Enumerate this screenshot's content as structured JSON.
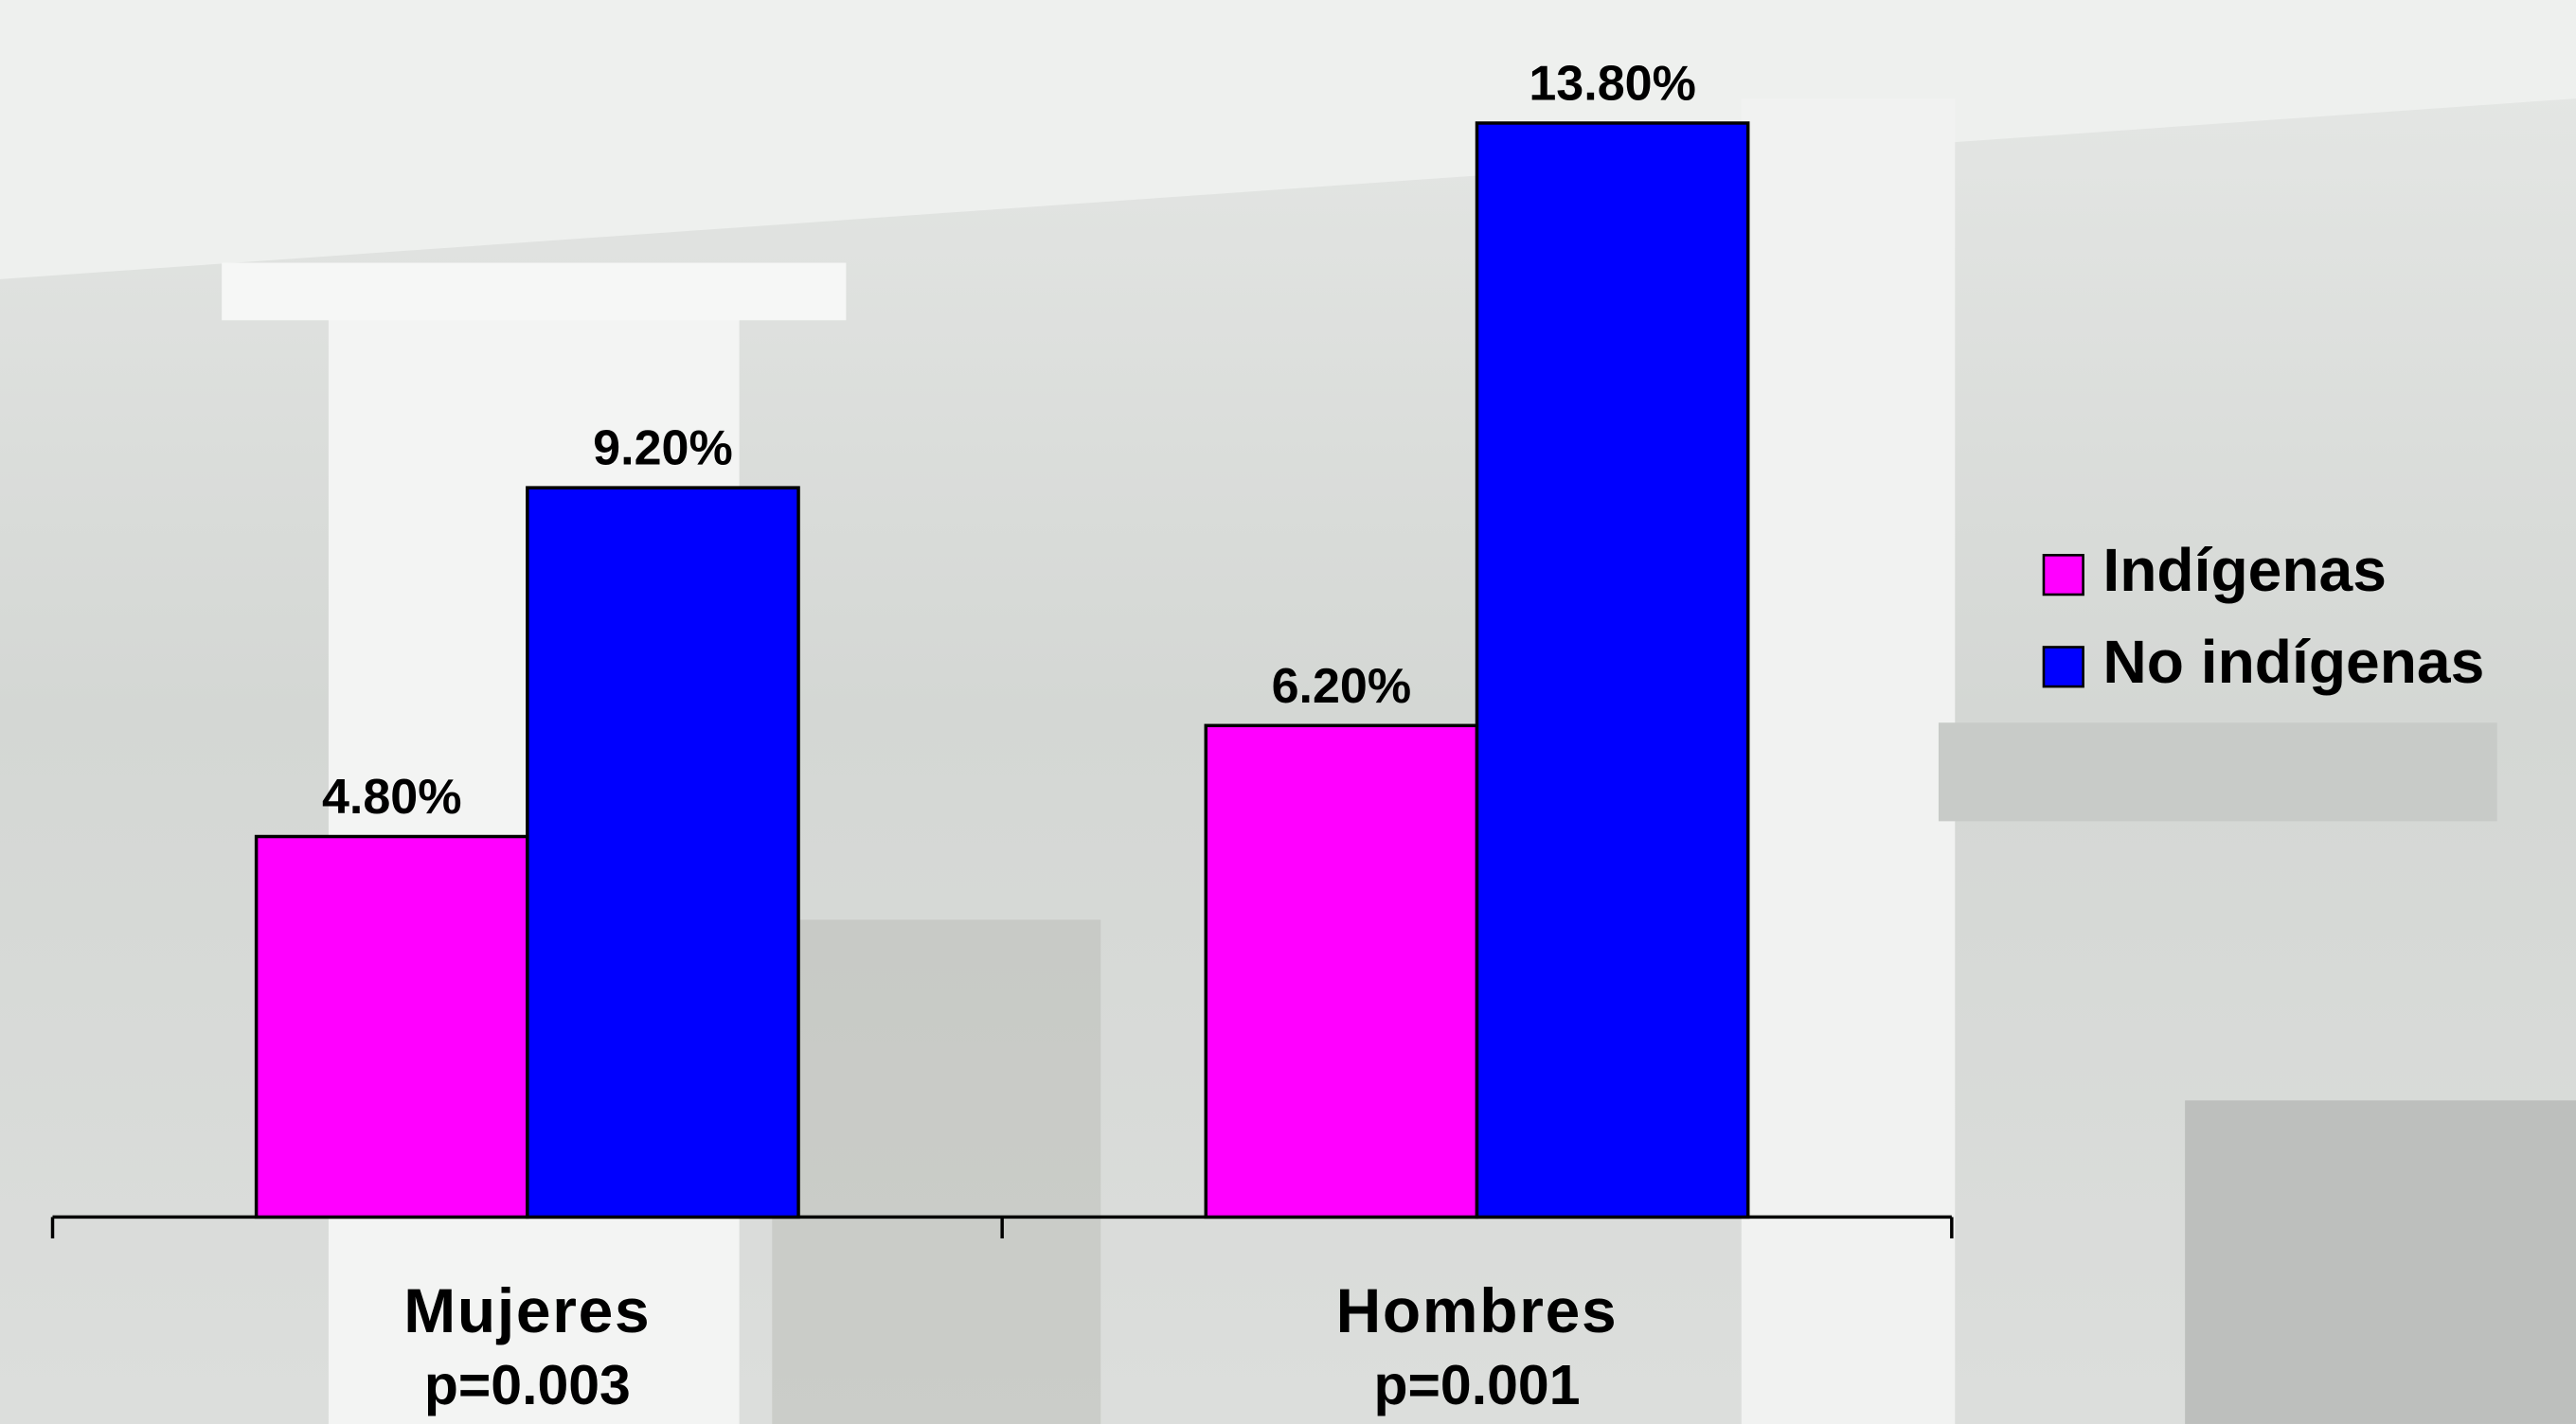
{
  "chart_data": {
    "type": "bar",
    "categories": [
      "Mujeres",
      "Hombres"
    ],
    "category_notes": [
      "p=0.003",
      "p=0.001"
    ],
    "series": [
      {
        "name": "Indígenas",
        "color": "#ff00ff",
        "values": [
          4.8,
          6.2
        ],
        "value_labels": [
          "4.80%",
          "6.20%"
        ]
      },
      {
        "name": "No indígenas",
        "color": "#0000ff",
        "values": [
          9.2,
          13.8
        ],
        "value_labels": [
          "9.20%",
          "13.80%"
        ]
      }
    ],
    "ylim": [
      0,
      15
    ],
    "legend": "right"
  }
}
